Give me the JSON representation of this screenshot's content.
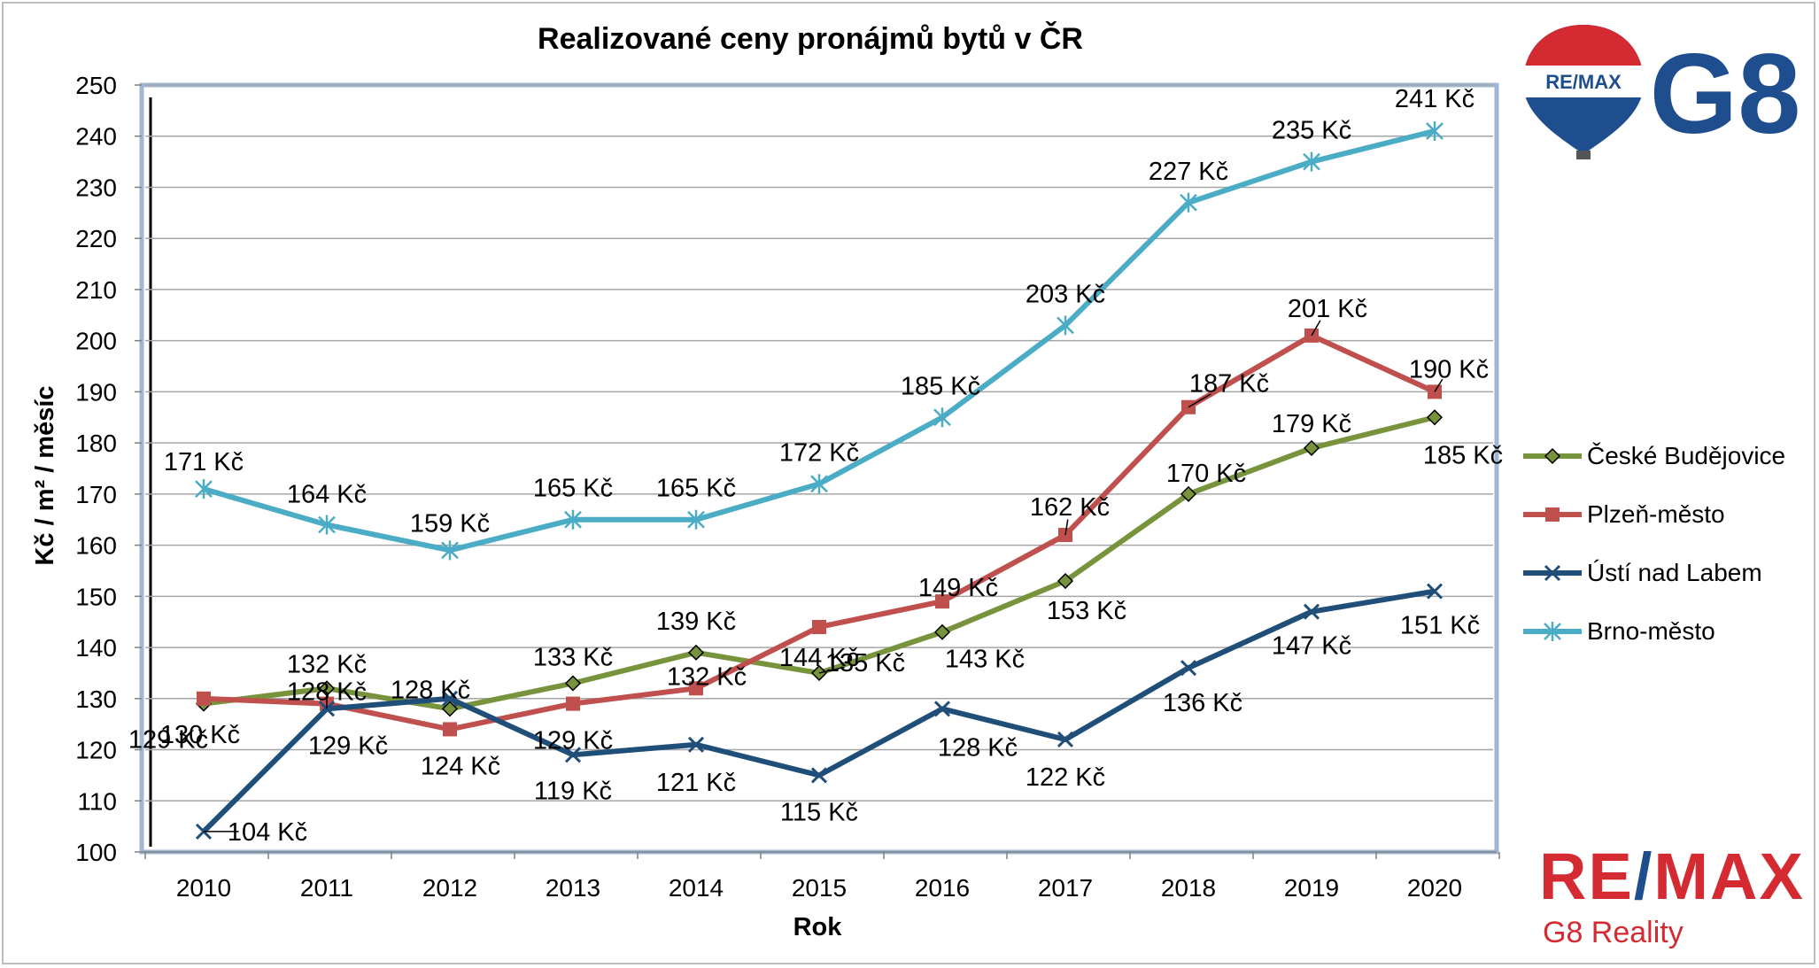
{
  "chart_data": {
    "type": "line",
    "title": "Realizované ceny pronájmů bytů v ČR",
    "xlabel": "Rok",
    "ylabel": "Kč / m² / měsíc",
    "ylim": [
      100,
      250
    ],
    "yticks": [
      "100",
      "110",
      "120",
      "130",
      "140",
      "150",
      "160",
      "170",
      "180",
      "190",
      "200",
      "210",
      "220",
      "230",
      "240",
      "250"
    ],
    "categories": [
      "2010",
      "2011",
      "2012",
      "2013",
      "2014",
      "2015",
      "2016",
      "2017",
      "2018",
      "2019",
      "2020"
    ],
    "grid": true,
    "legend_position": "right",
    "series": [
      {
        "name": "České Budějovice",
        "color": "#77933c",
        "marker": "diamond",
        "values": [
          129,
          132,
          128,
          133,
          139,
          135,
          143,
          153,
          170,
          179,
          185
        ],
        "labels": [
          "129 Kč",
          "132 Kč",
          "128 Kč",
          "133 Kč",
          "139 Kč",
          "135 Kč",
          "143 Kč",
          "153 Kč",
          "170 Kč",
          "179 Kč",
          "185 Kč"
        ]
      },
      {
        "name": "Plzeň-město",
        "color": "#c0504d",
        "marker": "square",
        "values": [
          130,
          129,
          124,
          129,
          132,
          144,
          149,
          162,
          187,
          201,
          190
        ],
        "labels": [
          "130 Kč",
          "129 Kč",
          "124 Kč",
          "129 Kč",
          "132 Kč",
          "144 Kč",
          "149 Kč",
          "162 Kč",
          "187 Kč",
          "201 Kč",
          "190 Kč"
        ]
      },
      {
        "name": "Ústí nad Labem",
        "color": "#1f4e79",
        "marker": "x",
        "values": [
          104,
          128,
          130,
          119,
          121,
          115,
          128,
          122,
          136,
          147,
          151
        ],
        "labels": [
          "104 Kč",
          "128 Kč",
          "",
          "119 Kč",
          "121 Kč",
          "115 Kč",
          "128 Kč",
          "122 Kč",
          "136 Kč",
          "147 Kč",
          "151 Kč"
        ]
      },
      {
        "name": "Brno-město",
        "color": "#4bacc6",
        "marker": "star",
        "values": [
          171,
          164,
          159,
          165,
          165,
          172,
          185,
          203,
          227,
          235,
          241
        ],
        "labels": [
          "171 Kč",
          "164 Kč",
          "159 Kč",
          "165 Kč",
          "165 Kč",
          "172 Kč",
          "185 Kč",
          "203 Kč",
          "227 Kč",
          "235 Kč",
          "241 Kč"
        ]
      }
    ]
  },
  "branding": {
    "top_logo_balloon_text": "RE/MAX",
    "top_logo_text": "G8",
    "bottom_logo_part1": "RE",
    "bottom_logo_slash": "/",
    "bottom_logo_part2": "MAX",
    "bottom_logo_sub": "G8 Reality",
    "red": "#d42a32",
    "blue": "#1f4e8f"
  }
}
